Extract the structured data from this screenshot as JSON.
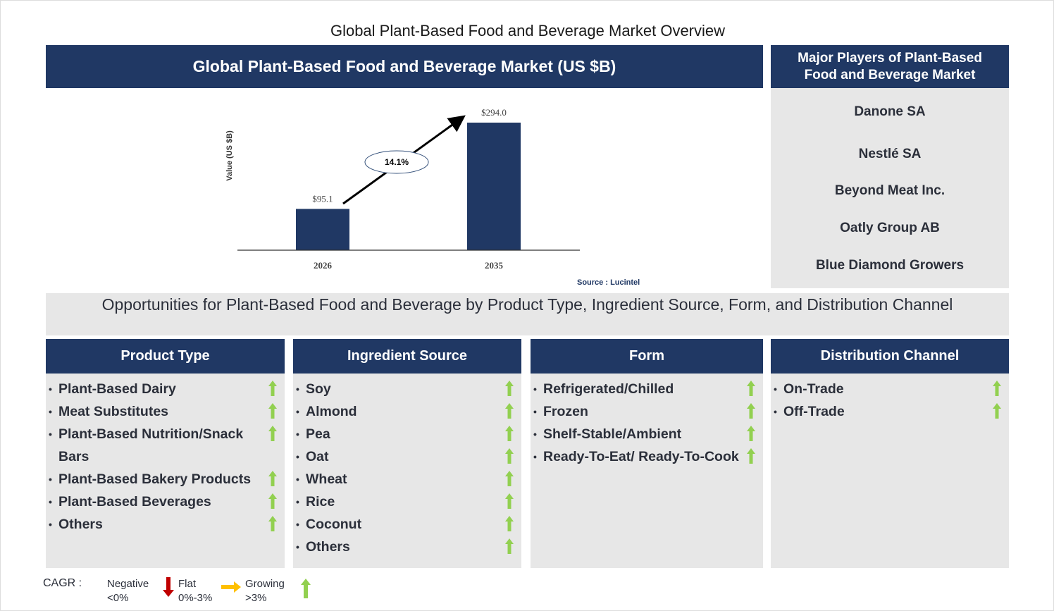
{
  "title": "Global Plant-Based Food and Beverage Market Overview",
  "chart_panel": {
    "header": "Global Plant-Based Food and Beverage Market (US $B)",
    "source": "Source : Lucintel"
  },
  "chart_data": {
    "type": "bar",
    "title": "Global Plant-Based Food and Beverage Market (US $B)",
    "categories": [
      "2026",
      "2035"
    ],
    "values": [
      95.1,
      294.0
    ],
    "data_labels": [
      "$95.1",
      "$294.0"
    ],
    "ylabel": "Value (US $B)",
    "xlabel": "",
    "ylim": [
      0,
      294
    ],
    "grid": false,
    "annotation": "14.1%",
    "bar_color": "#203864"
  },
  "players": {
    "header": "Major Players of Plant-Based Food and Beverage Market",
    "items": [
      "Danone SA",
      "Nestlé SA",
      "Beyond Meat Inc.",
      "Oatly Group AB",
      "Blue Diamond Growers"
    ]
  },
  "opportunities": {
    "header": "Opportunities for Plant-Based Food and Beverage by Product Type, Ingredient Source, Form, and Distribution Channel"
  },
  "columns": [
    {
      "header": "Product Type",
      "items": [
        "Plant-Based Dairy",
        "Meat Substitutes",
        "Plant-Based Nutrition/Snack Bars",
        "Plant-Based Bakery Products",
        "Plant-Based Beverages",
        "Others"
      ]
    },
    {
      "header": "Ingredient Source",
      "items": [
        "Soy",
        "Almond",
        "Pea",
        "Oat",
        "Wheat",
        "Rice",
        "Coconut",
        "Others"
      ]
    },
    {
      "header": "Form",
      "items": [
        "Refrigerated/Chilled",
        "Frozen",
        "Shelf-Stable/Ambient",
        "Ready-To-Eat/ Ready-To-Cook"
      ]
    },
    {
      "header": "Distribution Channel",
      "items": [
        "On-Trade",
        "Off-Trade"
      ]
    }
  ],
  "trend": "growing",
  "legend": {
    "label": "CAGR :",
    "negative": "Negative",
    "negative_range": "<0%",
    "flat": "Flat",
    "flat_range": "0%-3%",
    "growing": "Growing",
    "growing_range": ">3%",
    "colors": {
      "negative": "#c00000",
      "flat": "#ffc000",
      "growing": "#92d050"
    }
  }
}
